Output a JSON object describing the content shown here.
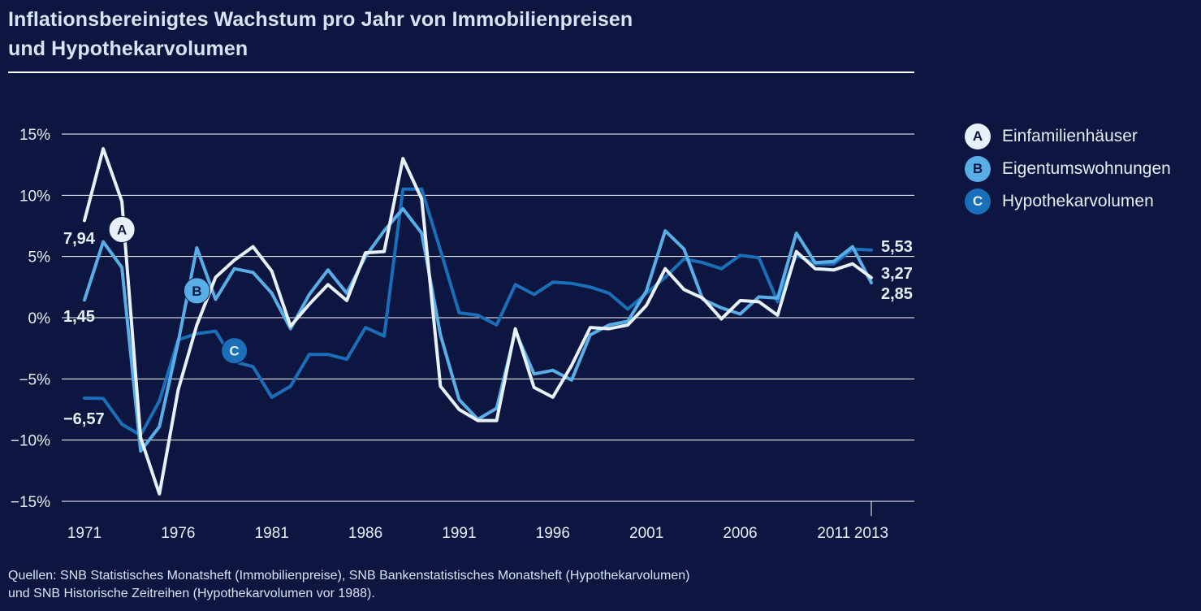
{
  "title_line1": "Inflationsbereinigtes Wachstum pro Jahr von Immobilienpreisen",
  "title_line2": "und Hypothekarvolumen",
  "footer_line1": "Quellen: SNB Statistisches Monatsheft (Immobilienpreise), SNB Bankenstatistisches Monatsheft (Hypothekarvolumen)",
  "footer_line2": "und SNB Historische Zeitreihen (Hypothekarvolumen vor 1988).",
  "legend": [
    {
      "key": "A",
      "label": "Einfamilienhäuser",
      "color": "#e8f0fa",
      "text_color": "#0c1640"
    },
    {
      "key": "B",
      "label": "Eigentumswohnungen",
      "color": "#5aaee8",
      "text_color": "#0c1640"
    },
    {
      "key": "C",
      "label": "Hypothekarvolumen",
      "color": "#1b6fb8",
      "text_color": "#e8f0fa"
    }
  ],
  "chart_data": {
    "type": "line",
    "x": [
      1971,
      1972,
      1973,
      1974,
      1975,
      1976,
      1977,
      1978,
      1979,
      1980,
      1981,
      1982,
      1983,
      1984,
      1985,
      1986,
      1987,
      1988,
      1989,
      1990,
      1991,
      1992,
      1993,
      1994,
      1995,
      1996,
      1997,
      1998,
      1999,
      2000,
      2001,
      2002,
      2003,
      2004,
      2005,
      2006,
      2007,
      2008,
      2009,
      2010,
      2011,
      2012,
      2013
    ],
    "x_ticks": [
      "1971",
      "1976",
      "1981",
      "1986",
      "1991",
      "1996",
      "2001",
      "2006",
      "2011",
      "2013"
    ],
    "y_ticks": [
      "15%",
      "10%",
      "5%",
      "0%",
      "−5%",
      "−10%",
      "−15%"
    ],
    "ylim": [
      -15,
      15
    ],
    "grid": true,
    "series": [
      {
        "key": "C",
        "name": "Hypothekarvolumen",
        "color": "#1b6fb8",
        "values": [
          -6.57,
          -6.6,
          -8.7,
          -9.6,
          -6.8,
          -1.8,
          -1.3,
          -1.1,
          -3.6,
          -4.0,
          -6.5,
          -5.6,
          -3.0,
          -3.0,
          -3.4,
          -0.8,
          -1.5,
          10.5,
          10.5,
          5.5,
          0.4,
          0.2,
          -0.6,
          2.7,
          1.9,
          2.9,
          2.8,
          2.5,
          2.0,
          0.7,
          2.0,
          3.3,
          4.8,
          4.5,
          4.0,
          5.1,
          4.9,
          1.3,
          5.1,
          4.4,
          4.4,
          5.6,
          5.53
        ],
        "end_label": "5,53",
        "start_label": "−6,57"
      },
      {
        "key": "B",
        "name": "Eigentumswohnungen",
        "color": "#5aaee8",
        "values": [
          1.45,
          6.2,
          4.1,
          -10.9,
          -8.9,
          -2.0,
          5.7,
          1.5,
          4.0,
          3.7,
          2.0,
          -0.9,
          1.9,
          3.9,
          2.0,
          5.0,
          7.1,
          8.9,
          6.9,
          -1.4,
          -6.7,
          -8.3,
          -7.4,
          -1.1,
          -4.6,
          -4.3,
          -5.1,
          -1.4,
          -0.6,
          -0.3,
          2.2,
          7.1,
          5.6,
          1.5,
          0.8,
          0.3,
          1.7,
          1.6,
          6.9,
          4.5,
          4.6,
          5.8,
          2.85
        ],
        "end_label": "2,85",
        "start_label": "1,45"
      },
      {
        "key": "A",
        "name": "Einfamilienhäuser",
        "color": "#e8f0fa",
        "values": [
          7.94,
          13.8,
          9.5,
          -9.8,
          -14.4,
          -5.9,
          -0.6,
          3.3,
          4.7,
          5.8,
          3.8,
          -0.7,
          1.1,
          2.7,
          1.4,
          5.3,
          5.4,
          13.0,
          9.7,
          -5.6,
          -7.5,
          -8.4,
          -8.4,
          -0.9,
          -5.7,
          -6.5,
          -3.9,
          -0.8,
          -0.9,
          -0.6,
          1.0,
          4.0,
          2.3,
          1.6,
          -0.1,
          1.4,
          1.3,
          0.2,
          5.4,
          4.0,
          3.9,
          4.4,
          3.27
        ],
        "end_label": "3,27",
        "start_label": "7,94"
      }
    ]
  }
}
